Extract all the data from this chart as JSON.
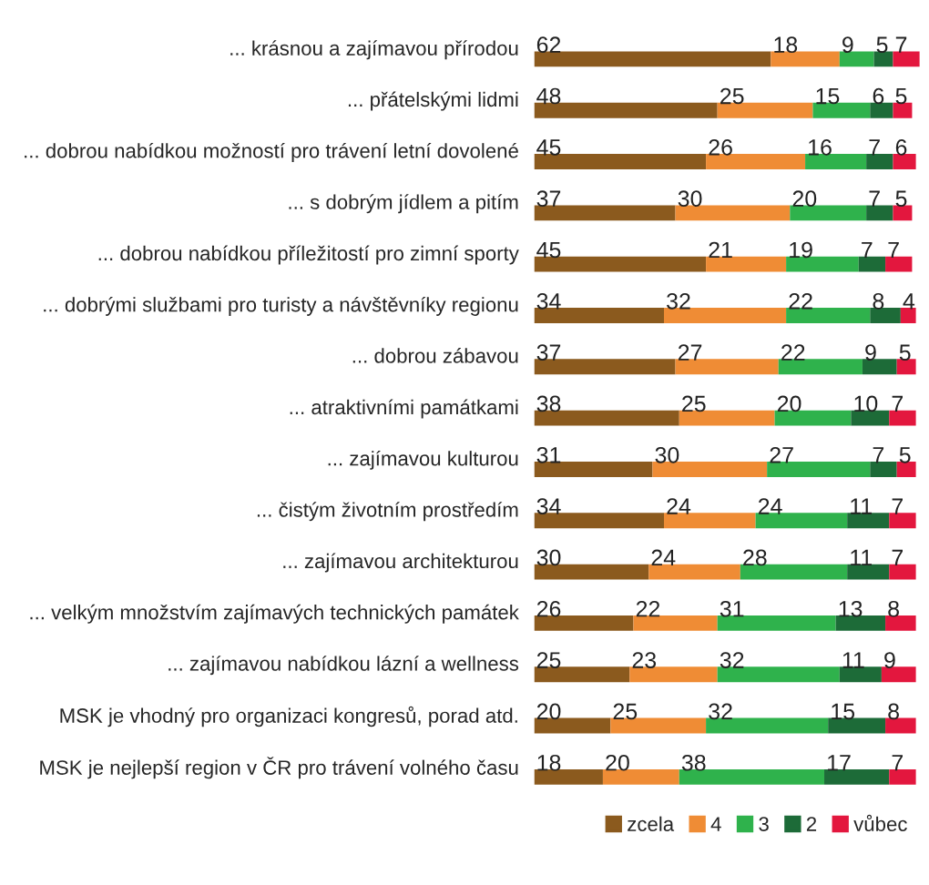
{
  "chart_data": {
    "type": "bar",
    "orientation": "horizontal",
    "stacked": true,
    "data_labels": true,
    "legend": "bottom right",
    "grid": false,
    "categories": [
      "... krásnou a zajímavou přírodou",
      "... přátelskými lidmi",
      "... dobrou nabídkou možností pro trávení letní dovolené",
      "... s dobrým jídlem a pitím",
      "... dobrou nabídkou příležitostí pro zimní sporty",
      "... dobrými službami pro turisty a návštěvníky regionu",
      "... dobrou zábavou",
      "... atraktivními památkami",
      "... zajímavou kulturou",
      "... čistým životním prostředím",
      "... zajímavou architekturou",
      "... velkým množstvím zajímavých technických památek",
      "... zajímavou nabídkou lázní a wellness",
      "MSK je vhodný pro organizaci kongresů, porad atd.",
      "MSK je nejlepší region v ČR pro trávení volného času"
    ],
    "series": [
      {
        "name": "zcela",
        "color": "#8b5a1e",
        "values": [
          62,
          48,
          45,
          37,
          45,
          34,
          37,
          38,
          31,
          34,
          30,
          26,
          25,
          20,
          18
        ]
      },
      {
        "name": "4",
        "color": "#ef8c35",
        "values": [
          18,
          25,
          26,
          30,
          21,
          32,
          27,
          25,
          30,
          24,
          24,
          22,
          23,
          25,
          20
        ]
      },
      {
        "name": "3",
        "color": "#2fb24c",
        "values": [
          9,
          15,
          16,
          20,
          19,
          22,
          22,
          20,
          27,
          24,
          28,
          31,
          32,
          32,
          38
        ]
      },
      {
        "name": "2",
        "color": "#1d6b38",
        "values": [
          5,
          6,
          7,
          7,
          7,
          8,
          9,
          10,
          7,
          11,
          11,
          13,
          11,
          15,
          17
        ]
      },
      {
        "name": "vůbec",
        "color": "#e3173e",
        "values": [
          7,
          5,
          6,
          5,
          7,
          4,
          5,
          7,
          5,
          7,
          7,
          8,
          9,
          8,
          7
        ]
      }
    ]
  }
}
